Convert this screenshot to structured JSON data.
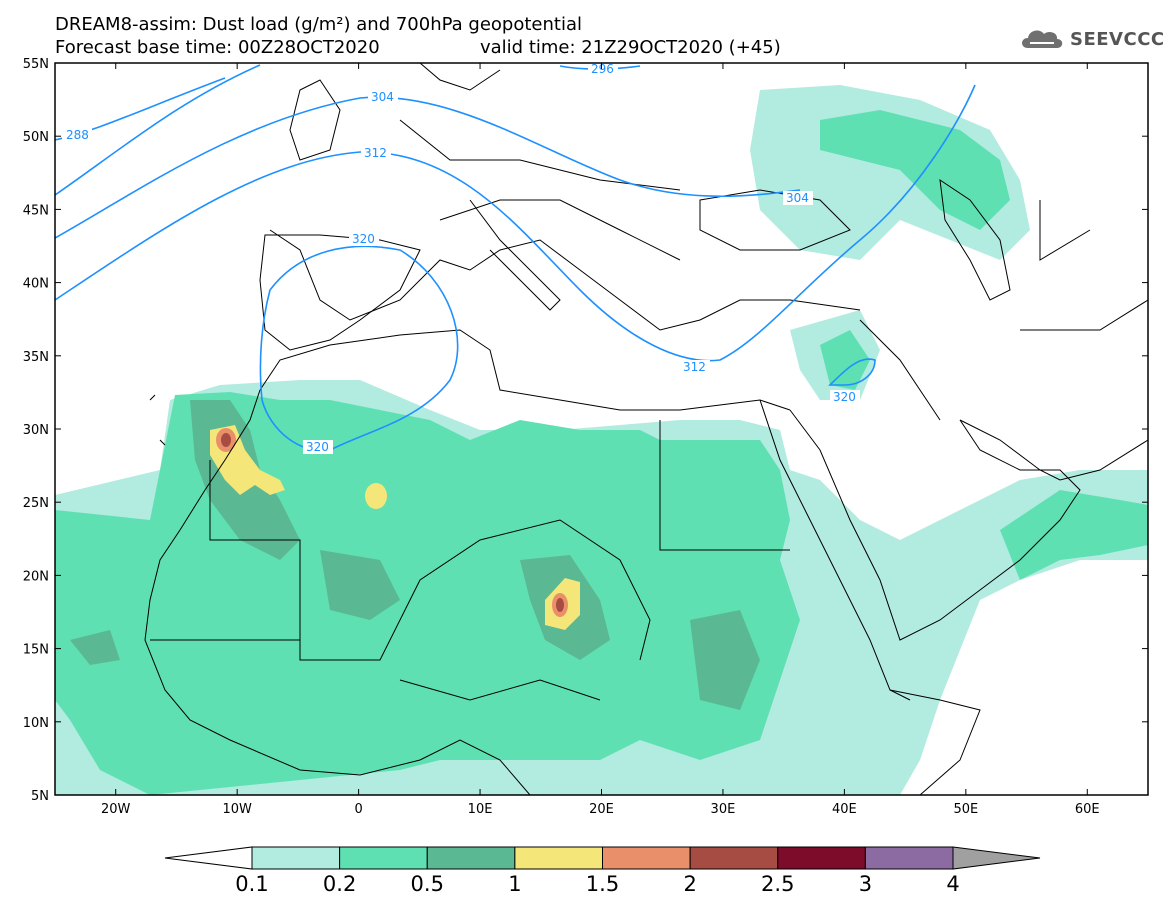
{
  "header": {
    "title_line1": "DREAM8-assim: Dust load (g/m²) and 700hPa geopotential",
    "title_line2_left": "Forecast base time: 00Z28OCT2020",
    "title_line2_right": "valid time: 21Z29OCT2020 (+45)",
    "logo_text": "SEEVCCC"
  },
  "map": {
    "lat_labels": [
      "55N",
      "50N",
      "45N",
      "40N",
      "35N",
      "30N",
      "25N",
      "20N",
      "15N",
      "10N",
      "5N"
    ],
    "lon_labels": [
      "20W",
      "10W",
      "0",
      "10E",
      "20E",
      "30E",
      "40E",
      "50E",
      "60E"
    ],
    "contour_labels": [
      "288",
      "304",
      "312",
      "320",
      "304",
      "312",
      "320",
      "320",
      "296"
    ],
    "contour_color": "#1e90ff"
  },
  "colorbar": {
    "levels": [
      "0.1",
      "0.2",
      "0.5",
      "1",
      "1.5",
      "2",
      "2.5",
      "3",
      "4"
    ],
    "colors": [
      "#ffffff",
      "#b2ebe0",
      "#5fe0b2",
      "#5ab893",
      "#f5e67a",
      "#e9906a",
      "#a64c42",
      "#7d0b2a",
      "#8c6ba3",
      "#a0a0a0"
    ]
  }
}
